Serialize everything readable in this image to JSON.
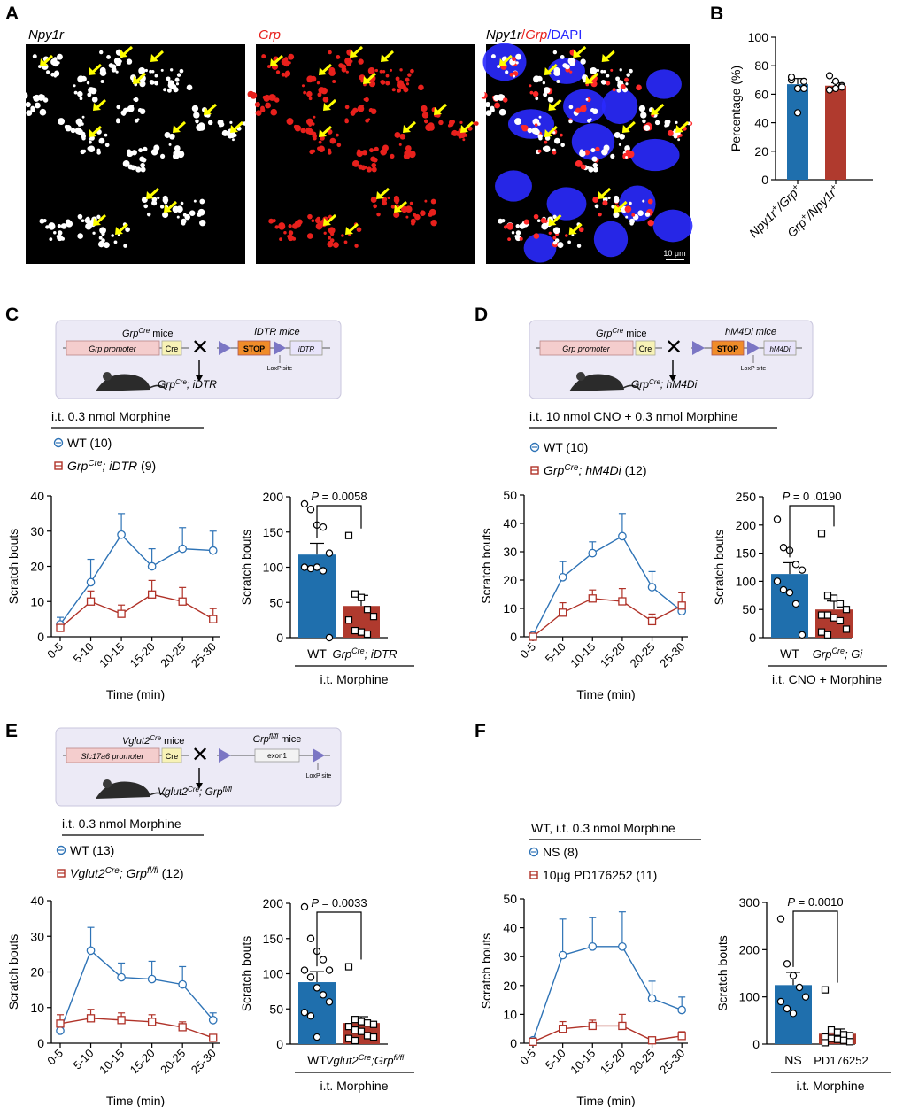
{
  "colors": {
    "wt_blue": "#2e73b6",
    "red": "#b03228",
    "bar_blue": "#1f6fad",
    "bar_red": "#b03a2e",
    "dapi": "#2a2aff",
    "arrow": "#ffff00"
  },
  "panel_a": {
    "letter": "A",
    "images": [
      {
        "title": "Npy1r",
        "channel": "npy1r"
      },
      {
        "title": "Grp",
        "channel": "grp"
      },
      {
        "title_parts": [
          "Npy1r",
          "/",
          "Grp",
          "/DAPI"
        ],
        "channel": "merge"
      }
    ],
    "scale_bar": "10 μm"
  },
  "panel_b": {
    "letter": "B",
    "chart_data": {
      "type": "bar",
      "ylabel": "Percentage (%)",
      "ylim": [
        0,
        100
      ],
      "yticks": [
        "0",
        "20",
        "40",
        "60",
        "80",
        "100"
      ],
      "categories": [
        "Npy1r+/Grp+",
        "Grp+/Npy1r+"
      ],
      "values": [
        67,
        66
      ],
      "errors": [
        4,
        2
      ],
      "points": [
        [
          70,
          64,
          64,
          72,
          47,
          69
        ],
        [
          63,
          69,
          66,
          73,
          64,
          65
        ]
      ]
    }
  },
  "panel_c": {
    "letter": "C",
    "scheme": {
      "left_title": "Grp",
      "left_sup": "Cre",
      "left_suffix": " mice",
      "left_promoter": "Grp promoter",
      "cre": "Cre",
      "right_title": "iDTR mice",
      "stop": "STOP",
      "gene": "iDTR",
      "loxp": "LoxP site",
      "offspring": "Grp",
      "offspring_sup": "Cre",
      "offspring_suffix": "; iDTR"
    },
    "treatment": "i.t. 0.3 nmol Morphine",
    "legend_wt": "WT (10)",
    "legend_ko_main": "Grp",
    "legend_ko_sup": "Cre",
    "legend_ko_rest": "; iDTR",
    "legend_ko_n": " (9)",
    "line_chart": {
      "type": "line",
      "xlabel": "Time (min)",
      "ylabel": "Scratch bouts",
      "categories": [
        "0-5",
        "5-10",
        "10-15",
        "15-20",
        "20-25",
        "25-30"
      ],
      "ylim": [
        0,
        40
      ],
      "yticks": [
        "0",
        "10",
        "20",
        "30",
        "40"
      ],
      "series": [
        {
          "name": "WT (10)",
          "values": [
            3.5,
            15.5,
            29,
            20,
            25,
            24.5
          ],
          "errors": [
            2,
            6.5,
            6,
            5,
            6,
            5.5
          ]
        },
        {
          "name": "GrpCre; iDTR (9)",
          "values": [
            2.5,
            10,
            6.5,
            12,
            10,
            5
          ],
          "errors": [
            1,
            3,
            2.5,
            4,
            4,
            3
          ]
        }
      ]
    },
    "bar_chart": {
      "type": "bar",
      "ylabel": "Scratch bouts",
      "ylim": [
        0,
        200
      ],
      "yticks": [
        "0",
        "50",
        "100",
        "150",
        "200"
      ],
      "values": [
        118,
        45
      ],
      "errors": [
        16,
        15
      ],
      "points": [
        [
          190,
          182,
          160,
          157,
          120,
          100,
          98,
          100,
          95,
          0
        ],
        [
          145,
          62,
          57,
          40,
          30,
          25,
          10,
          8,
          5
        ]
      ],
      "pvalue": "= 0.0058",
      "p_label": "P",
      "cat_wt": "WT",
      "cat_ko_main": "Grp",
      "cat_ko_sup": "Cre",
      "cat_ko_rest": "; iDTR",
      "group_label": "i.t. Morphine"
    }
  },
  "panel_d": {
    "letter": "D",
    "scheme": {
      "left_title": "Grp",
      "left_sup": "Cre",
      "left_suffix": " mice",
      "left_promoter": "Grp promoter",
      "cre": "Cre",
      "right_title": "hM4Di mice",
      "stop": "STOP",
      "gene": "hM4Di",
      "loxp": "LoxP site",
      "offspring": "Grp",
      "offspring_sup": "Cre",
      "offspring_suffix": "; hM4Di"
    },
    "treatment": "i.t. 10 nmol CNO + 0.3 nmol Morphine",
    "legend_wt": "WT (10)",
    "legend_ko_main": "Grp",
    "legend_ko_sup": "Cre",
    "legend_ko_rest": "; hM4Di",
    "legend_ko_n": " (12)",
    "line_chart": {
      "type": "line",
      "xlabel": "Time (min)",
      "ylabel": "Scratch bouts",
      "categories": [
        "0-5",
        "5-10",
        "10-15",
        "15-20",
        "20-25",
        "25-30"
      ],
      "ylim": [
        0,
        50
      ],
      "yticks": [
        "0",
        "10",
        "20",
        "30",
        "40",
        "50"
      ],
      "series": [
        {
          "name": "WT (10)",
          "values": [
            0.5,
            21,
            29.5,
            35.5,
            17.5,
            9
          ],
          "errors": [
            0.5,
            5.5,
            4,
            8,
            5.5,
            2.5
          ]
        },
        {
          "name": "GrpCre; hM4Di (12)",
          "values": [
            0,
            8.5,
            13.5,
            12.5,
            5.5,
            11
          ],
          "errors": [
            0,
            3.5,
            3,
            4.5,
            2.5,
            4.5
          ]
        }
      ]
    },
    "bar_chart": {
      "type": "bar",
      "ylabel": "Scratch bouts",
      "ylim": [
        0,
        250
      ],
      "yticks": [
        "0",
        "50",
        "100",
        "150",
        "200",
        "250"
      ],
      "values": [
        113,
        50
      ],
      "errors": [
        20,
        15
      ],
      "points": [
        [
          210,
          160,
          155,
          130,
          120,
          100,
          85,
          80,
          60,
          5
        ],
        [
          185,
          75,
          70,
          60,
          50,
          40,
          40,
          35,
          30,
          15,
          10,
          5
        ]
      ],
      "pvalue": "= 0 .0190",
      "p_label": "P",
      "cat_wt": "WT",
      "cat_ko_main": "Grp",
      "cat_ko_sup": "Cre",
      "cat_ko_rest": "; Gi",
      "group_label": "i.t. CNO + Morphine"
    }
  },
  "panel_e": {
    "letter": "E",
    "scheme": {
      "left_title": "Vglut2",
      "left_sup": "Cre",
      "left_suffix": " mice",
      "left_promoter": "Slc17a6 promoter",
      "cre": "Cre",
      "right_title": "Grp",
      "right_sup": "fl/fl",
      "right_suffix": " mice",
      "exon": "exon1",
      "loxp": "LoxP site",
      "offspring": "Vglut2",
      "offspring_sup": "Cre",
      "offspring_mid": ";  Grp",
      "offspring_sup2": "fl/fl"
    },
    "treatment": "i.t. 0.3 nmol Morphine",
    "legend_wt": "WT (13)",
    "legend_ko_main": "Vglut2",
    "legend_ko_sup": "Cre",
    "legend_ko_rest": "; Grp",
    "legend_ko_sup2": "fl/fl",
    "legend_ko_n": " (12)",
    "line_chart": {
      "type": "line",
      "xlabel": "Time (min)",
      "ylabel": "Scratch bouts",
      "categories": [
        "0-5",
        "5-10",
        "10-15",
        "15-20",
        "20-25",
        "25-30"
      ],
      "ylim": [
        0,
        40
      ],
      "yticks": [
        "0",
        "10",
        "20",
        "30",
        "40"
      ],
      "series": [
        {
          "name": "WT (13)",
          "values": [
            3.5,
            26,
            18.5,
            18,
            16.5,
            6.5
          ],
          "errors": [
            2,
            6.5,
            4,
            5,
            5,
            2
          ]
        },
        {
          "name": "Vglut2Cre; Grpfl/fl (12)",
          "values": [
            5.5,
            7,
            6.5,
            6,
            4.5,
            1.5
          ],
          "errors": [
            2.5,
            2.5,
            2,
            2,
            1.5,
            0.5
          ]
        }
      ]
    },
    "bar_chart": {
      "type": "bar",
      "ylabel": "Scratch bouts",
      "ylim": [
        0,
        200
      ],
      "yticks": [
        "0",
        "50",
        "100",
        "150",
        "200"
      ],
      "values": [
        88,
        30
      ],
      "errors": [
        15,
        9
      ],
      "points": [
        [
          195,
          150,
          132,
          120,
          105,
          105,
          95,
          80,
          70,
          60,
          45,
          40,
          10
        ],
        [
          110,
          35,
          32,
          30,
          28,
          25,
          20,
          18,
          12,
          10,
          8,
          5
        ]
      ],
      "pvalue": "= 0.0033",
      "p_label": "P",
      "cat_wt": "WT",
      "cat_ko_main": "Vglut2",
      "cat_ko_sup": "Cre",
      "cat_ko_rest": ";Grp",
      "cat_ko_sup2": "fl/fl",
      "group_label": "i.t. Morphine"
    }
  },
  "panel_f": {
    "letter": "F",
    "treatment": "WT, i.t. 0.3 nmol Morphine",
    "legend_wt": "NS (8)",
    "legend_ko": "10μg PD176252 (11)",
    "line_chart": {
      "type": "line",
      "xlabel": "Time (min)",
      "ylabel": "Scratch bouts",
      "categories": [
        "0-5",
        "5-10",
        "10-15",
        "15-20",
        "20-25",
        "25-30"
      ],
      "ylim": [
        0,
        50
      ],
      "yticks": [
        "0",
        "10",
        "20",
        "30",
        "40",
        "50"
      ],
      "series": [
        {
          "name": "NS (8)",
          "values": [
            1,
            30.5,
            33.5,
            33.5,
            15.5,
            11.5
          ],
          "errors": [
            0.5,
            12.5,
            10,
            12,
            6,
            4.5
          ]
        },
        {
          "name": "10μg PD176252 (11)",
          "values": [
            0.5,
            5,
            6,
            6,
            1,
            2.5
          ],
          "errors": [
            0.5,
            2.5,
            2,
            4,
            1,
            1.5
          ]
        }
      ]
    },
    "bar_chart": {
      "type": "bar",
      "ylabel": "Scratch bouts",
      "ylim": [
        0,
        300
      ],
      "yticks": [
        "0",
        "100",
        "200",
        "300"
      ],
      "values": [
        125,
        22
      ],
      "errors": [
        27,
        10
      ],
      "points": [
        [
          265,
          170,
          145,
          120,
          100,
          90,
          75,
          65
        ],
        [
          115,
          30,
          25,
          20,
          18,
          15,
          12,
          10,
          8,
          5,
          3
        ]
      ],
      "pvalue": "= 0.0010",
      "p_label": "P",
      "cat_wt": "NS",
      "cat_ko": "PD176252",
      "group_label": "i.t. Morphine"
    }
  }
}
